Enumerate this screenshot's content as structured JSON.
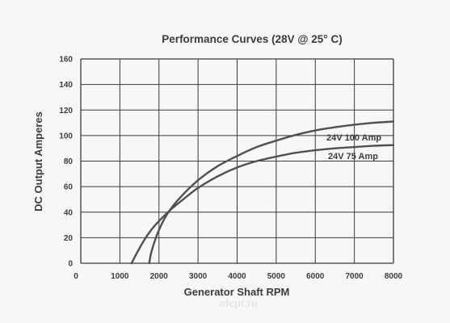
{
  "chart_data": {
    "type": "line",
    "title": "Performance Curves (28V @ 25° C)",
    "xlabel": "Generator Shaft RPM",
    "ylabel": "DC Output Amperes",
    "xlim": [
      0,
      8000
    ],
    "ylim": [
      0,
      160
    ],
    "x_ticks": [
      0,
      1000,
      2000,
      3000,
      4000,
      5000,
      6000,
      7000,
      8000
    ],
    "y_ticks": [
      0,
      20,
      40,
      60,
      80,
      100,
      120,
      140,
      160
    ],
    "grid": true,
    "series": [
      {
        "name": "24V 100 Amp",
        "x": [
          1750,
          1800,
          1900,
          2000,
          2200,
          2500,
          3000,
          3500,
          4000,
          4500,
          5000,
          5500,
          6000,
          6500,
          7000,
          7500,
          8000
        ],
        "y": [
          0,
          8,
          18,
          26,
          38,
          50,
          65,
          76,
          84,
          91,
          96,
          100.5,
          104,
          106.5,
          108.5,
          110,
          111
        ]
      },
      {
        "name": "24V 75 Amp",
        "x": [
          1300,
          1400,
          1600,
          1800,
          2000,
          2300,
          2700,
          3000,
          3500,
          4000,
          4500,
          5000,
          5500,
          6000,
          6500,
          7000,
          7500,
          8000
        ],
        "y": [
          0,
          6,
          17,
          26,
          33,
          42,
          52,
          59,
          68,
          75,
          80,
          83.5,
          86.5,
          88.5,
          90,
          91,
          92,
          92.5
        ]
      }
    ],
    "colors": {
      "line": "#505050",
      "grid": "#3a3a3a",
      "text": "#3c3c3c",
      "background": "#f7f7f5"
    }
  },
  "watermark": "ofcpt.ru"
}
